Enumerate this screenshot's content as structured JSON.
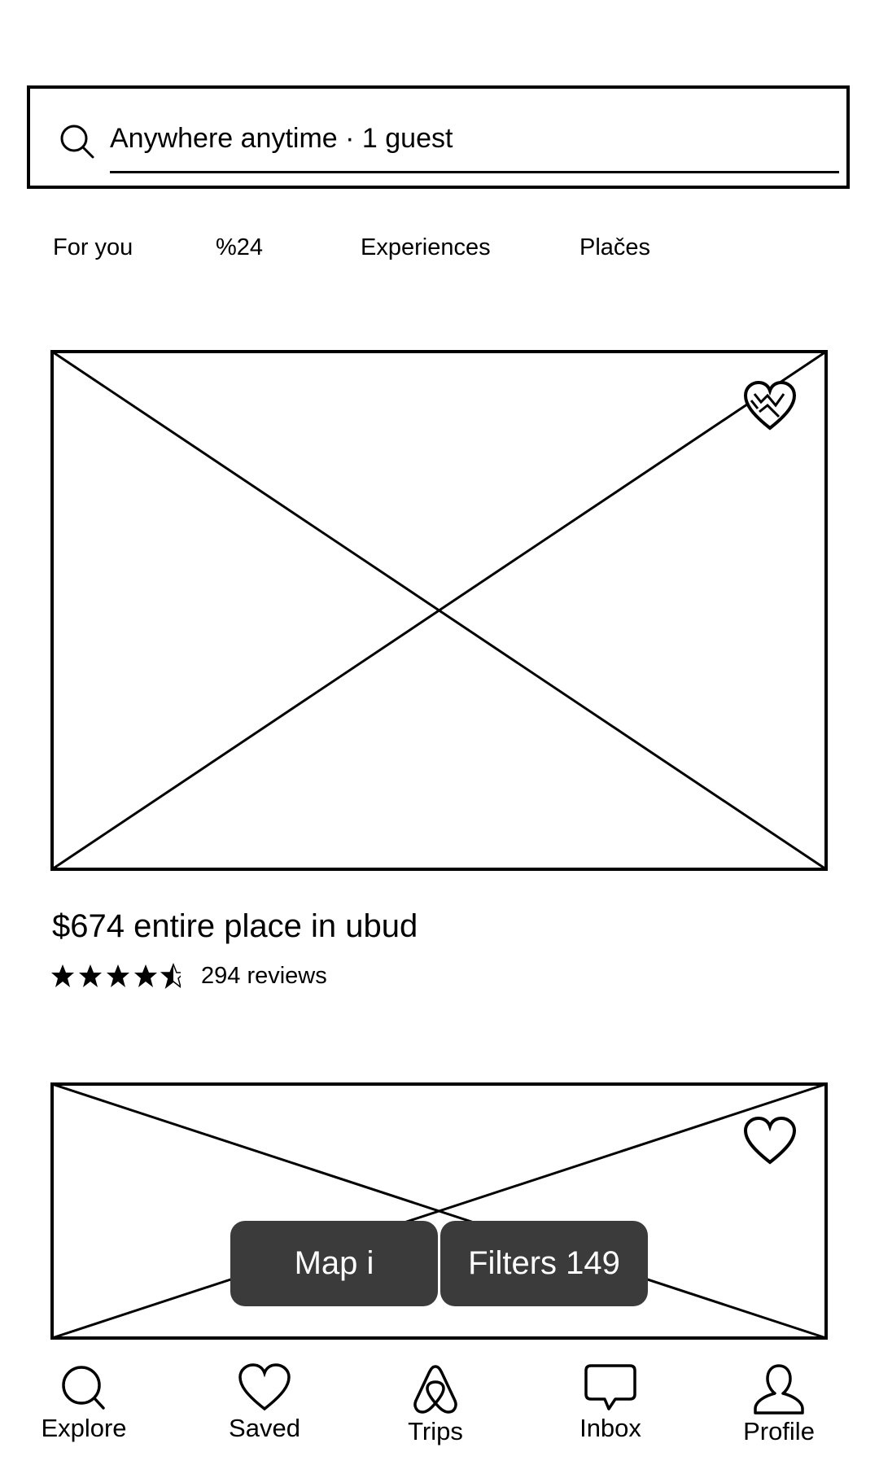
{
  "search": {
    "text": "Anywhere anytime · 1 guest",
    "icon": "search-icon"
  },
  "tabs": [
    {
      "label": "For you"
    },
    {
      "label": "%24"
    },
    {
      "label": "Experiences"
    },
    {
      "label": "Plačes"
    }
  ],
  "listings": [
    {
      "title": "$674 entire place in ubud",
      "rating": 4.5,
      "rating_max": 5,
      "reviews": "294 reviews",
      "saved_icon": "heart-icon"
    },
    {
      "saved_icon": "heart-icon"
    }
  ],
  "floating_buttons": {
    "map_label": "Map i",
    "filters_label": "Filters 149"
  },
  "bottom_nav": [
    {
      "label": "Explore",
      "icon": "search-icon"
    },
    {
      "label": "Saved",
      "icon": "heart-icon"
    },
    {
      "label": "Trips",
      "icon": "airbnb-logo-icon"
    },
    {
      "label": "Inbox",
      "icon": "chat-bubble-icon"
    },
    {
      "label": "Profile",
      "icon": "person-icon"
    }
  ],
  "colors": {
    "ink": "#000000",
    "button_bg": "#3b3b3b",
    "button_text": "#ffffff",
    "background": "#ffffff"
  }
}
